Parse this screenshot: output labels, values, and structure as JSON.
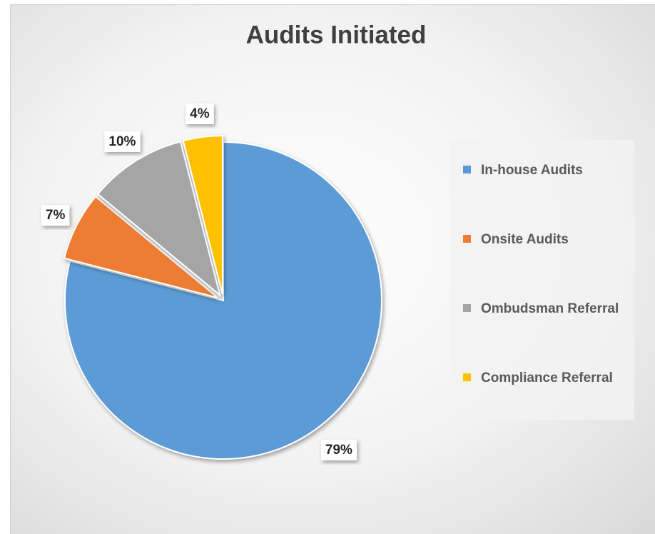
{
  "chart_data": {
    "type": "pie",
    "title": "Audits Initiated",
    "categories": [
      "In-house Audits",
      "Onsite Audits",
      "Ombudsman Referral",
      "Compliance Referral"
    ],
    "values": [
      79,
      7,
      10,
      4
    ],
    "value_labels": [
      "79%",
      "7%",
      "10%",
      "4%"
    ],
    "colors": [
      "#5b9bd5",
      "#ed7d31",
      "#a5a5a5",
      "#ffc000"
    ],
    "legend": "right"
  }
}
